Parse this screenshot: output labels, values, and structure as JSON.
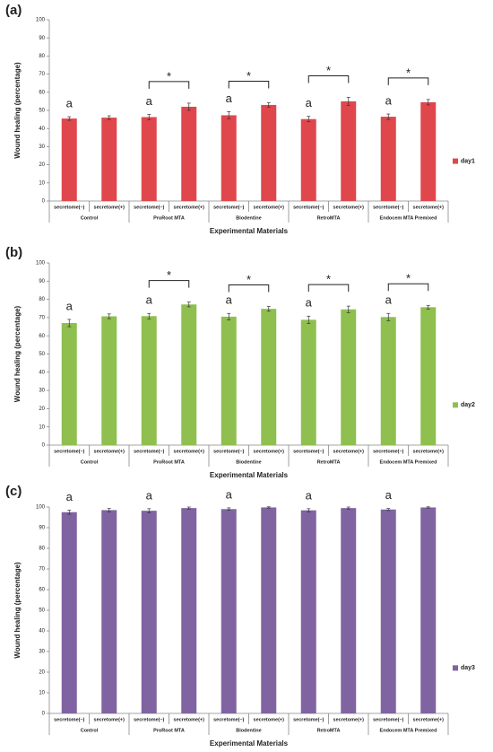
{
  "chart_data": [
    {
      "type": "bar",
      "panel_label": "(a)",
      "y_label": "Wound healing (percentage)",
      "x_label": "Experimental Materials",
      "categories": [
        "secretome(–)",
        "secretome(+)",
        "secretome(–)",
        "secretome(+)",
        "secretome(–)",
        "secretome(+)",
        "secretome(–)",
        "secretome(+)",
        "secretome(–)",
        "secretome(+)"
      ],
      "groups": [
        "Control",
        "ProRoot MTA",
        "Biodentine",
        "RetroMTA",
        "Endocem MTA Premixed"
      ],
      "series": [
        {
          "name": "day1",
          "color": "#e0474c",
          "values": [
            45.5,
            46,
            46.3,
            52,
            47.3,
            53,
            45.2,
            55,
            46.5,
            54.5
          ],
          "errors": [
            1,
            1,
            1.5,
            2,
            2,
            1.2,
            1.5,
            2.2,
            1.5,
            1.5
          ]
        }
      ],
      "letters": [
        "a",
        null,
        "a",
        null,
        "a",
        null,
        "a",
        null,
        "a",
        null
      ],
      "significance": [
        null,
        "*",
        "*",
        "*",
        "*"
      ],
      "ylim": [
        0,
        100
      ],
      "yticks": [
        0,
        10,
        20,
        30,
        40,
        50,
        60,
        70,
        80,
        90,
        100
      ],
      "grid": false,
      "legend": "right"
    },
    {
      "type": "bar",
      "panel_label": "(b)",
      "y_label": "Wound healing (percentage)",
      "x_label": "Experimental Materials",
      "categories": [
        "secretome(–)",
        "secretome(+)",
        "secretome(–)",
        "secretome(+)",
        "secretome(–)",
        "secretome(+)",
        "secretome(–)",
        "secretome(+)",
        "secretome(–)",
        "secretome(+)"
      ],
      "groups": [
        "Control",
        "ProRoot MTA",
        "Biodentine",
        "RetroMTA",
        "Endocem MTA Premixed"
      ],
      "series": [
        {
          "name": "day2",
          "color": "#8fbf4f",
          "values": [
            67,
            70.7,
            70.8,
            77.2,
            70.5,
            74.8,
            68.8,
            74.5,
            70.3,
            75.7
          ],
          "errors": [
            2,
            1.3,
            1.5,
            1.3,
            1.8,
            1.3,
            2,
            1.8,
            2,
            1
          ]
        }
      ],
      "letters": [
        "a",
        null,
        "a",
        null,
        "a",
        null,
        "a",
        null,
        "a",
        null
      ],
      "significance": [
        null,
        "*",
        "*",
        "*",
        "*"
      ],
      "ylim": [
        0,
        100
      ],
      "yticks": [
        0,
        10,
        20,
        30,
        40,
        50,
        60,
        70,
        80,
        90,
        100
      ],
      "grid": false,
      "legend": "right"
    },
    {
      "type": "bar",
      "panel_label": "(c)",
      "y_label": "Wound healing (percentage)",
      "x_label": "Experimental Materials",
      "categories": [
        "secretome(–)",
        "secretome(+)",
        "secretome(–)",
        "secretome(+)",
        "secretome(–)",
        "secretome(+)",
        "secretome(–)",
        "secretome(+)",
        "secretome(–)",
        "secretome(+)"
      ],
      "groups": [
        "Control",
        "ProRoot MTA",
        "Biodentine",
        "RetroMTA",
        "Endocem MTA Premixed"
      ],
      "series": [
        {
          "name": "day3",
          "color": "#8064a2",
          "values": [
            97.5,
            98.5,
            98.2,
            99.5,
            99,
            99.8,
            98.4,
            99.5,
            98.8,
            99.8
          ],
          "errors": [
            1,
            0.8,
            1,
            0.5,
            0.6,
            0.3,
            0.8,
            0.5,
            0.5,
            0.3
          ]
        }
      ],
      "letters": [
        "a",
        null,
        "a",
        null,
        "a",
        null,
        "a",
        null,
        "a",
        null
      ],
      "significance": [
        null,
        null,
        null,
        null,
        null
      ],
      "ylim": [
        0,
        100
      ],
      "yticks": [
        0,
        10,
        20,
        30,
        40,
        50,
        60,
        70,
        80,
        90,
        100
      ],
      "grid": false,
      "legend": "right"
    }
  ]
}
